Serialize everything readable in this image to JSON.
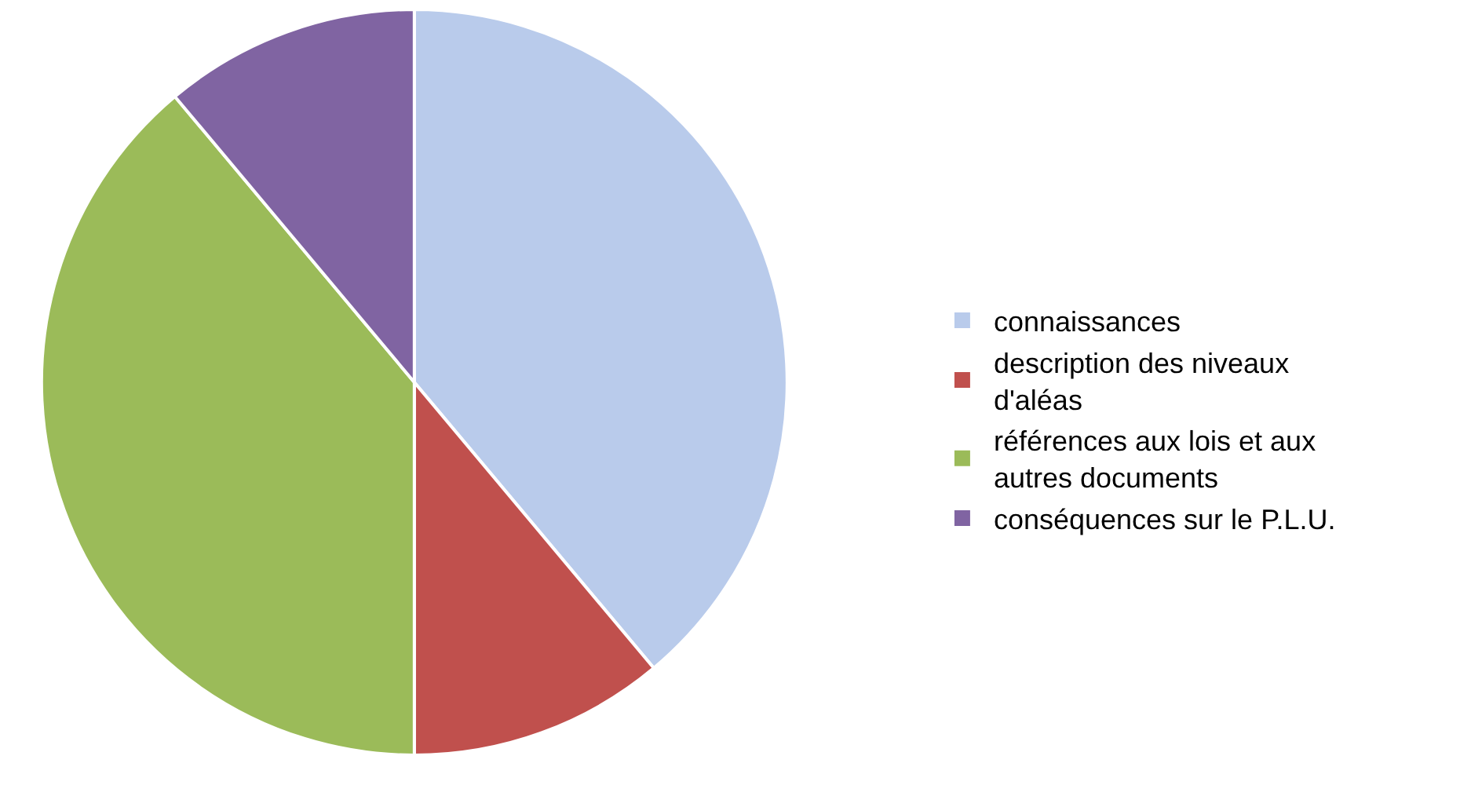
{
  "chart_data": {
    "type": "pie",
    "categories": [
      "connaissances",
      "description des niveaux d'aléas",
      "références aux lois et aux autres documents",
      "conséquences sur le P.L.U."
    ],
    "values": [
      38.9,
      11.1,
      38.9,
      11.1
    ],
    "colors": [
      "#b9cbeb",
      "#c0504d",
      "#9bbb59",
      "#8064a2"
    ],
    "legend": "right"
  }
}
